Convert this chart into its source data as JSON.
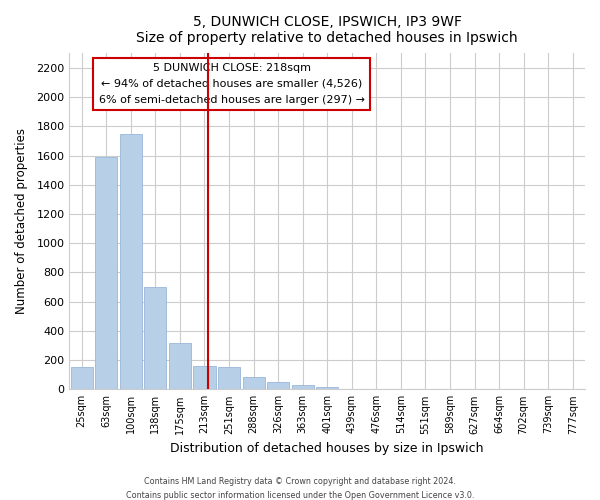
{
  "title": "5, DUNWICH CLOSE, IPSWICH, IP3 9WF",
  "subtitle": "Size of property relative to detached houses in Ipswich",
  "xlabel": "Distribution of detached houses by size in Ipswich",
  "ylabel": "Number of detached properties",
  "bar_labels": [
    "25sqm",
    "63sqm",
    "100sqm",
    "138sqm",
    "175sqm",
    "213sqm",
    "251sqm",
    "288sqm",
    "326sqm",
    "363sqm",
    "401sqm",
    "439sqm",
    "476sqm",
    "514sqm",
    "551sqm",
    "589sqm",
    "627sqm",
    "664sqm",
    "702sqm",
    "739sqm",
    "777sqm"
  ],
  "bar_values": [
    155,
    1590,
    1750,
    700,
    315,
    160,
    150,
    85,
    50,
    30,
    15,
    0,
    0,
    0,
    0,
    0,
    0,
    0,
    0,
    0,
    0
  ],
  "bar_color": "#b8cfe8",
  "vline_x": 5.135,
  "vline_color": "#cc0000",
  "annotation_line1": "5 DUNWICH CLOSE: 218sqm",
  "annotation_line2": "← 94% of detached houses are smaller (4,526)",
  "annotation_line3": "6% of semi-detached houses are larger (297) →",
  "annotation_box_color": "#ffffff",
  "annotation_border_color": "#cc0000",
  "ylim": [
    0,
    2300
  ],
  "yticks": [
    0,
    200,
    400,
    600,
    800,
    1000,
    1200,
    1400,
    1600,
    1800,
    2000,
    2200
  ],
  "footer_line1": "Contains HM Land Registry data © Crown copyright and database right 2024.",
  "footer_line2": "Contains public sector information licensed under the Open Government Licence v3.0.",
  "background_color": "#ffffff",
  "grid_color": "#cccccc"
}
